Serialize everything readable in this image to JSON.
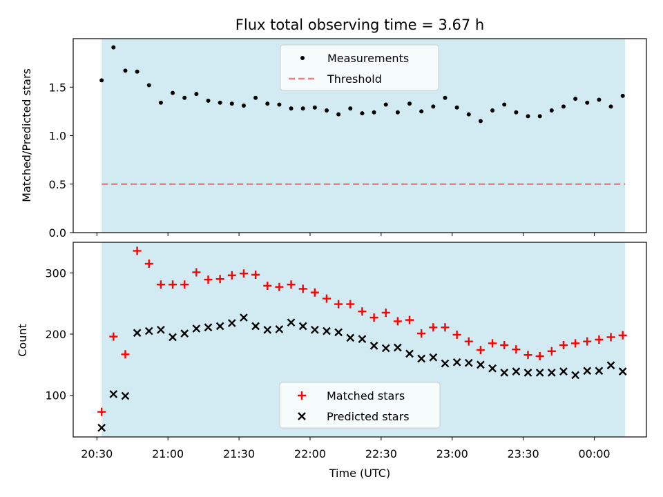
{
  "chart_data": {
    "title": "Flux total observing time = 3.67 h",
    "xlabel": "Time (UTC)",
    "x_tick_labels": [
      "20:30",
      "21:00",
      "21:30",
      "22:00",
      "22:30",
      "23:00",
      "23:30",
      "00:00"
    ],
    "shaded_span": {
      "start": "20:32",
      "end": "00:13",
      "color": "#add8e6"
    },
    "panels": [
      {
        "type": "scatter",
        "ylabel": "Matched/Predicted stars",
        "ylim": [
          0,
          2.0
        ],
        "y_ticks": [
          "0.0",
          "0.5",
          "1.0",
          "1.5"
        ],
        "legend_position": "upper center",
        "series": [
          {
            "name": "Measurements",
            "marker": "dot",
            "color": "#000000",
            "x": [
              "20:32",
              "20:37",
              "20:42",
              "20:47",
              "20:52",
              "20:57",
              "21:02",
              "21:07",
              "21:12",
              "21:17",
              "21:22",
              "21:27",
              "21:32",
              "21:37",
              "21:42",
              "21:47",
              "21:52",
              "21:57",
              "22:02",
              "22:07",
              "22:12",
              "22:17",
              "22:22",
              "22:27",
              "22:32",
              "22:37",
              "22:42",
              "22:47",
              "22:52",
              "22:57",
              "23:02",
              "23:07",
              "23:12",
              "23:17",
              "23:22",
              "23:27",
              "23:32",
              "23:37",
              "23:42",
              "23:47",
              "23:52",
              "23:57",
              "00:02",
              "00:07",
              "00:12"
            ],
            "y": [
              1.57,
              1.91,
              1.67,
              1.66,
              1.52,
              1.34,
              1.44,
              1.39,
              1.43,
              1.36,
              1.34,
              1.33,
              1.31,
              1.39,
              1.33,
              1.32,
              1.28,
              1.28,
              1.29,
              1.26,
              1.22,
              1.28,
              1.23,
              1.24,
              1.32,
              1.24,
              1.33,
              1.25,
              1.3,
              1.39,
              1.29,
              1.22,
              1.15,
              1.26,
              1.32,
              1.24,
              1.2,
              1.2,
              1.26,
              1.3,
              1.38,
              1.34,
              1.37,
              1.3,
              1.41
            ]
          },
          {
            "name": "Threshold",
            "style": "dashed line",
            "color": "#f08080",
            "y": 0.5
          }
        ]
      },
      {
        "type": "scatter",
        "ylabel": "Count",
        "ylim": [
          32,
          350
        ],
        "y_ticks": [
          "100",
          "200",
          "300"
        ],
        "legend_position": "lower center",
        "series": [
          {
            "name": "Matched stars",
            "marker": "plus",
            "color": "#ff0000",
            "x": [
              "20:32",
              "20:37",
              "20:42",
              "20:47",
              "20:52",
              "20:57",
              "21:02",
              "21:07",
              "21:12",
              "21:17",
              "21:22",
              "21:27",
              "21:32",
              "21:37",
              "21:42",
              "21:47",
              "21:52",
              "21:57",
              "22:02",
              "22:07",
              "22:12",
              "22:17",
              "22:22",
              "22:27",
              "22:32",
              "22:37",
              "22:42",
              "22:47",
              "22:52",
              "22:57",
              "23:02",
              "23:07",
              "23:12",
              "23:17",
              "23:22",
              "23:27",
              "23:32",
              "23:37",
              "23:42",
              "23:47",
              "23:52",
              "23:57",
              "00:02",
              "00:07",
              "00:12"
            ],
            "y": [
              73,
              196,
              167,
              336,
              315,
              281,
              281,
              281,
              301,
              289,
              290,
              296,
              299,
              297,
              279,
              277,
              281,
              274,
              268,
              258,
              249,
              249,
              237,
              227,
              235,
              221,
              223,
              201,
              211,
              211,
              199,
              188,
              174,
              185,
              182,
              175,
              166,
              164,
              172,
              182,
              185,
              188,
              191,
              195,
              198
            ]
          },
          {
            "name": "Predicted stars",
            "marker": "x",
            "color": "#000000",
            "x": [
              "20:32",
              "20:37",
              "20:42",
              "20:47",
              "20:52",
              "20:57",
              "21:02",
              "21:07",
              "21:12",
              "21:17",
              "21:22",
              "21:27",
              "21:32",
              "21:37",
              "21:42",
              "21:47",
              "21:52",
              "21:57",
              "22:02",
              "22:07",
              "22:12",
              "22:17",
              "22:22",
              "22:27",
              "22:32",
              "22:37",
              "22:42",
              "22:47",
              "22:52",
              "22:57",
              "23:02",
              "23:07",
              "23:12",
              "23:17",
              "23:22",
              "23:27",
              "23:32",
              "23:37",
              "23:42",
              "23:47",
              "23:52",
              "23:57",
              "00:02",
              "00:07",
              "00:12"
            ],
            "y": [
              47,
              102,
              99,
              202,
              205,
              207,
              195,
              201,
              209,
              211,
              213,
              218,
              227,
              213,
              207,
              208,
              219,
              213,
              207,
              205,
              203,
              194,
              192,
              181,
              177,
              178,
              168,
              160,
              162,
              152,
              154,
              153,
              150,
              144,
              137,
              139,
              137,
              137,
              137,
              139,
              133,
              140,
              140,
              149,
              139
            ]
          }
        ]
      }
    ]
  }
}
